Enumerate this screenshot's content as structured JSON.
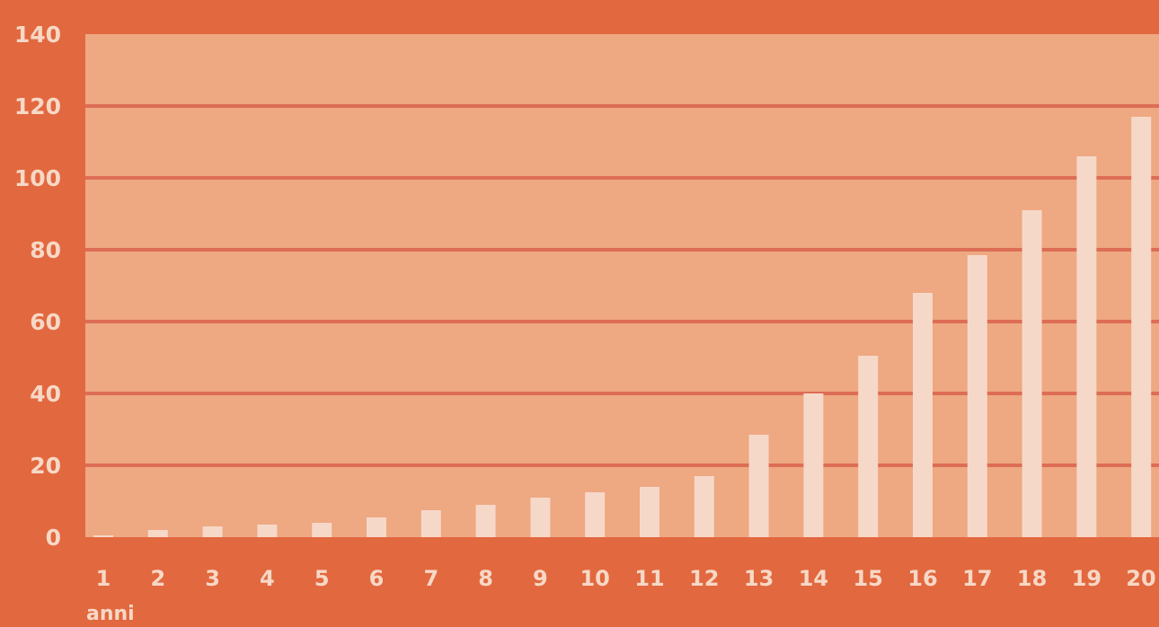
{
  "colors": {
    "background": "#e2683f",
    "plot_area": "#eea882",
    "gridline": "#dd6d55",
    "bar": "#f6d8c8",
    "text": "#f7d8c6"
  },
  "chart_data": {
    "type": "bar",
    "categories": [
      "1",
      "2",
      "3",
      "4",
      "5",
      "6",
      "7",
      "8",
      "9",
      "10",
      "11",
      "12",
      "13",
      "14",
      "15",
      "16",
      "17",
      "18",
      "19",
      "20"
    ],
    "values": [
      0.5,
      2,
      3,
      3.5,
      4,
      5.5,
      7.5,
      9,
      11,
      12.5,
      14,
      17,
      28.5,
      40,
      50.5,
      68,
      78.5,
      91,
      106,
      117
    ],
    "xlabel": "anni",
    "ylabel": "",
    "ylim": [
      0,
      140
    ],
    "yticks": [
      "0",
      "20",
      "40",
      "60",
      "80",
      "100",
      "120",
      "140"
    ],
    "grid": true
  }
}
